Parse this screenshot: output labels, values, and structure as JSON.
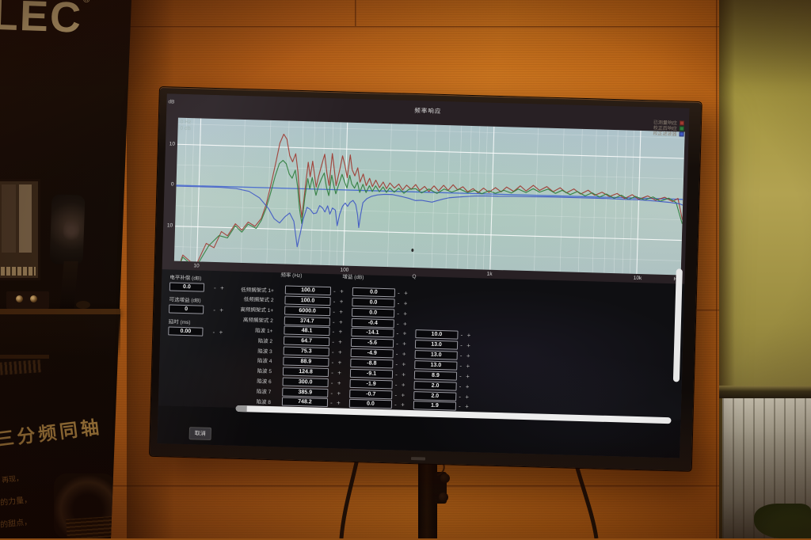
{
  "scene": {
    "banner": {
      "brand_partial": "LEC",
      "reg_mark": "®",
      "heading": "三分频同轴",
      "lines": [
        "再现，",
        "的力量，",
        "的甜点，"
      ]
    }
  },
  "screen": {
    "title": "频率响应",
    "cursor_readout": {
      "hz": "0 Hz",
      "db": "0 dB"
    },
    "y_axis": {
      "unit": "dB",
      "ticks": [
        "10",
        "0",
        "10"
      ]
    },
    "x_axis": {
      "ticks": [
        "10",
        "100",
        "1k",
        "10k"
      ],
      "unit": "Hz"
    },
    "stepper": {
      "minus": "-",
      "plus": "+"
    },
    "left_controls": [
      {
        "label": "电平补偿 (dB)",
        "value": "0.0"
      },
      {
        "label": "可选增益 (dB)",
        "value": "0"
      },
      {
        "label": "延时 (ms)",
        "value": "0.00"
      }
    ],
    "table": {
      "headers": {
        "freq": "频率 (Hz)",
        "gain": "增益 (dB)",
        "q": "Q"
      },
      "rows": [
        {
          "label": "低频搁架式 1+",
          "freq": "100.0",
          "gain": "0.0",
          "q": null
        },
        {
          "label": "低频搁架式 2",
          "freq": "100.0",
          "gain": "0.0",
          "q": null
        },
        {
          "label": "高频搁架式 1+",
          "freq": "6000.0",
          "gain": "0.0",
          "q": null
        },
        {
          "label": "高频搁架式 2",
          "freq": "374.7",
          "gain": "-0.4",
          "q": null
        },
        {
          "label": "陷波 1+",
          "freq": "48.1",
          "gain": "-14.1",
          "q": "10.0"
        },
        {
          "label": "陷波 2",
          "freq": "64.7",
          "gain": "-5.6",
          "q": "13.0"
        },
        {
          "label": "陷波 3",
          "freq": "75.3",
          "gain": "-4.9",
          "q": "13.0"
        },
        {
          "label": "陷波 4",
          "freq": "88.9",
          "gain": "-8.8",
          "q": "13.0"
        },
        {
          "label": "陷波 5",
          "freq": "124.8",
          "gain": "-9.1",
          "q": "8.9"
        },
        {
          "label": "陷波 6",
          "freq": "300.0",
          "gain": "-1.9",
          "q": "2.0"
        },
        {
          "label": "陷波 7",
          "freq": "385.9",
          "gain": "-0.7",
          "q": "2.0"
        },
        {
          "label": "陷波 8",
          "freq": "748.2",
          "gain": "0.0",
          "q": "1.9"
        }
      ]
    },
    "cancel_button": "取消"
  },
  "chart_data": {
    "type": "line",
    "title": "频率响应",
    "xlabel": "Hz",
    "ylabel": "dB",
    "x_scale": "log",
    "xlim": [
      7,
      20000
    ],
    "ylim": [
      -18.5,
      16.5
    ],
    "x_ticks": [
      10,
      100,
      1000,
      10000
    ],
    "y_ticks": [
      10,
      0,
      -10
    ],
    "grid": true,
    "legend_position": "top-right",
    "zero_line_color": "#4468cf",
    "legend": [
      {
        "label": "已测量响应",
        "color": "#9e3a31"
      },
      {
        "label": "校正后响应",
        "color": "#2e7d3c"
      },
      {
        "label": "校正滤波器",
        "color": "#3f58c4"
      }
    ],
    "series": [
      {
        "name": "measured-response",
        "color": "#9e3a31",
        "points": [
          [
            7.2,
            -22
          ],
          [
            8,
            -17
          ],
          [
            9,
            -18.5
          ],
          [
            10,
            -19
          ],
          [
            11.5,
            -14
          ],
          [
            13,
            -15
          ],
          [
            14.5,
            -11
          ],
          [
            16,
            -12
          ],
          [
            18,
            -9
          ],
          [
            20,
            -10.5
          ],
          [
            22,
            -8.5
          ],
          [
            24.5,
            -9.5
          ],
          [
            27,
            -7.5
          ],
          [
            29,
            -4
          ],
          [
            31,
            1
          ],
          [
            33,
            6
          ],
          [
            35,
            11
          ],
          [
            37,
            13.2
          ],
          [
            39,
            12
          ],
          [
            41,
            8
          ],
          [
            43,
            6.5
          ],
          [
            45,
            8.5
          ],
          [
            47,
            4
          ],
          [
            49,
            -3
          ],
          [
            51,
            -7
          ],
          [
            53,
            0
          ],
          [
            55,
            6.5
          ],
          [
            57,
            3
          ],
          [
            59,
            6.8
          ],
          [
            61,
            3.5
          ],
          [
            63,
            0.5
          ],
          [
            65,
            3
          ],
          [
            68,
            6
          ],
          [
            71,
            8.6
          ],
          [
            74,
            4
          ],
          [
            77,
            1
          ],
          [
            80,
            8.8
          ],
          [
            83,
            5
          ],
          [
            86,
            1
          ],
          [
            90,
            4.5
          ],
          [
            94,
            8.3
          ],
          [
            98,
            6
          ],
          [
            102,
            3
          ],
          [
            106,
            8.6
          ],
          [
            110,
            5
          ],
          [
            115,
            3.5
          ],
          [
            120,
            5.5
          ],
          [
            125,
            2
          ],
          [
            131,
            4
          ],
          [
            138,
            1.2
          ],
          [
            145,
            3
          ],
          [
            152,
            1
          ],
          [
            160,
            2.6
          ],
          [
            170,
            0.8
          ],
          [
            180,
            2.2
          ],
          [
            190,
            0.6
          ],
          [
            200,
            2
          ],
          [
            215,
            0.8
          ],
          [
            230,
            1.8
          ],
          [
            245,
            0.4
          ],
          [
            260,
            1.6
          ],
          [
            280,
            0.6
          ],
          [
            300,
            1.8
          ],
          [
            320,
            0.4
          ],
          [
            345,
            1.4
          ],
          [
            370,
            0.2
          ],
          [
            400,
            1.6
          ],
          [
            430,
            0.4
          ],
          [
            465,
            1.8
          ],
          [
            500,
            0.6
          ],
          [
            540,
            2
          ],
          [
            580,
            0.8
          ],
          [
            630,
            1.6
          ],
          [
            680,
            0.4
          ],
          [
            740,
            1.2
          ],
          [
            800,
            0.2
          ],
          [
            870,
            1.4
          ],
          [
            950,
            0.4
          ],
          [
            1050,
            1.6
          ],
          [
            1150,
            0.6
          ],
          [
            1250,
            1.8
          ],
          [
            1400,
            0.8
          ],
          [
            1550,
            2.2
          ],
          [
            1700,
            1
          ],
          [
            1900,
            2.4
          ],
          [
            2100,
            1.2
          ],
          [
            2350,
            2.2
          ],
          [
            2600,
            1
          ],
          [
            2900,
            2
          ],
          [
            3200,
            0.8
          ],
          [
            3600,
            1.8
          ],
          [
            4000,
            0.6
          ],
          [
            4500,
            1.6
          ],
          [
            5000,
            0.4
          ],
          [
            5600,
            1.2
          ],
          [
            6300,
            0.2
          ],
          [
            7100,
            1
          ],
          [
            8000,
            -0.2
          ],
          [
            9000,
            0.8
          ],
          [
            10000,
            -0.3
          ],
          [
            11500,
            0.6
          ],
          [
            13000,
            -0.4
          ],
          [
            15000,
            0.4
          ],
          [
            17000,
            -0.6
          ],
          [
            18500,
            0.2
          ],
          [
            20000,
            -5
          ]
        ]
      },
      {
        "name": "corrected-response",
        "color": "#2e7d3c",
        "points": [
          [
            7.2,
            -22.5
          ],
          [
            8,
            -17.5
          ],
          [
            9,
            -19
          ],
          [
            10,
            -19.5
          ],
          [
            12,
            -14.5
          ],
          [
            14,
            -12
          ],
          [
            16,
            -12.5
          ],
          [
            18,
            -9.5
          ],
          [
            20,
            -11
          ],
          [
            22,
            -9
          ],
          [
            25,
            -10
          ],
          [
            27,
            -8
          ],
          [
            29,
            -5
          ],
          [
            31,
            -1
          ],
          [
            33,
            3
          ],
          [
            35,
            6
          ],
          [
            37,
            6.8
          ],
          [
            39,
            6
          ],
          [
            41,
            3.5
          ],
          [
            43,
            2.5
          ],
          [
            45,
            4.5
          ],
          [
            47,
            0.5
          ],
          [
            49,
            -5
          ],
          [
            51,
            -8.5
          ],
          [
            53,
            -2
          ],
          [
            55,
            2.5
          ],
          [
            57,
            0
          ],
          [
            59,
            2.8
          ],
          [
            61,
            0.5
          ],
          [
            63,
            -1.5
          ],
          [
            65,
            0.5
          ],
          [
            68,
            2.5
          ],
          [
            71,
            4
          ],
          [
            74,
            0.5
          ],
          [
            77,
            -1.5
          ],
          [
            80,
            3.5
          ],
          [
            83,
            1
          ],
          [
            86,
            -1
          ],
          [
            90,
            1.5
          ],
          [
            94,
            3.8
          ],
          [
            98,
            2
          ],
          [
            102,
            0.5
          ],
          [
            106,
            3.6
          ],
          [
            110,
            1.5
          ],
          [
            115,
            0.5
          ],
          [
            120,
            2
          ],
          [
            125,
            -0.5
          ],
          [
            131,
            1.5
          ],
          [
            138,
            -0.5
          ],
          [
            145,
            1.2
          ],
          [
            152,
            -0.2
          ],
          [
            160,
            1.2
          ],
          [
            170,
            -0.2
          ],
          [
            180,
            1
          ],
          [
            190,
            -0.3
          ],
          [
            200,
            0.8
          ],
          [
            215,
            -0.2
          ],
          [
            230,
            0.8
          ],
          [
            250,
            -0.4
          ],
          [
            270,
            0.6
          ],
          [
            300,
            0.8
          ],
          [
            330,
            -0.2
          ],
          [
            370,
            0.8
          ],
          [
            420,
            -0.2
          ],
          [
            470,
            0.9
          ],
          [
            530,
            0.2
          ],
          [
            600,
            1
          ],
          [
            680,
            0.2
          ],
          [
            760,
            0.8
          ],
          [
            850,
            0
          ],
          [
            950,
            0.8
          ],
          [
            1050,
            0.2
          ],
          [
            1200,
            1
          ],
          [
            1350,
            0.4
          ],
          [
            1500,
            1.4
          ],
          [
            1700,
            0.6
          ],
          [
            1900,
            1.6
          ],
          [
            2100,
            0.8
          ],
          [
            2400,
            1.6
          ],
          [
            2700,
            0.6
          ],
          [
            3000,
            1.4
          ],
          [
            3400,
            0.4
          ],
          [
            3800,
            1.2
          ],
          [
            4300,
            0.2
          ],
          [
            4800,
            1
          ],
          [
            5400,
            0
          ],
          [
            6000,
            0.8
          ],
          [
            6800,
            -0.2
          ],
          [
            7600,
            0.6
          ],
          [
            8500,
            -0.4
          ],
          [
            9500,
            0.4
          ],
          [
            11000,
            -0.4
          ],
          [
            12500,
            0.4
          ],
          [
            14000,
            -0.6
          ],
          [
            16000,
            0.2
          ],
          [
            18000,
            -0.8
          ],
          [
            20000,
            -6
          ]
        ]
      },
      {
        "name": "correction-filter",
        "color": "#3f58c4",
        "points": [
          [
            7,
            -0.2
          ],
          [
            10,
            -0.2
          ],
          [
            14,
            -0.2
          ],
          [
            18,
            -0.4
          ],
          [
            22,
            -1
          ],
          [
            26,
            -2.5
          ],
          [
            30,
            -5
          ],
          [
            33,
            -7.5
          ],
          [
            36,
            -8.5
          ],
          [
            39,
            -7
          ],
          [
            42,
            -6
          ],
          [
            45,
            -8
          ],
          [
            48,
            -14.2
          ],
          [
            50,
            -11
          ],
          [
            52,
            -7.5
          ],
          [
            55,
            -4.5
          ],
          [
            58,
            -5
          ],
          [
            61,
            -6
          ],
          [
            64,
            -5.8
          ],
          [
            67,
            -4
          ],
          [
            70,
            -4.5
          ],
          [
            73,
            -5.5
          ],
          [
            76,
            -4
          ],
          [
            79,
            -6
          ],
          [
            82,
            -4.5
          ],
          [
            86,
            -5
          ],
          [
            89,
            -8.8
          ],
          [
            92,
            -6
          ],
          [
            96,
            -4
          ],
          [
            100,
            -3.2
          ],
          [
            104,
            -4
          ],
          [
            108,
            -3
          ],
          [
            113,
            -2.5
          ],
          [
            118,
            -3.5
          ],
          [
            122,
            -6
          ],
          [
            125,
            -9.1
          ],
          [
            128,
            -6
          ],
          [
            132,
            -3
          ],
          [
            140,
            -2
          ],
          [
            150,
            -1.4
          ],
          [
            165,
            -1
          ],
          [
            185,
            -0.8
          ],
          [
            210,
            -0.8
          ],
          [
            240,
            -1.2
          ],
          [
            270,
            -1.6
          ],
          [
            300,
            -2.1
          ],
          [
            330,
            -2
          ],
          [
            360,
            -2.2
          ],
          [
            390,
            -2.4
          ],
          [
            420,
            -2
          ],
          [
            460,
            -1.6
          ],
          [
            510,
            -1.2
          ],
          [
            570,
            -1
          ],
          [
            650,
            -0.8
          ],
          [
            760,
            -0.6
          ],
          [
            900,
            -0.5
          ],
          [
            1100,
            -0.5
          ],
          [
            1400,
            -0.4
          ],
          [
            1800,
            -0.4
          ],
          [
            2400,
            -0.3
          ],
          [
            3200,
            -0.3
          ],
          [
            4500,
            -0.3
          ],
          [
            6000,
            -0.3
          ],
          [
            8000,
            -0.4
          ],
          [
            10000,
            -0.4
          ],
          [
            13000,
            -0.6
          ],
          [
            16000,
            -0.8
          ],
          [
            19000,
            -1.1
          ],
          [
            20000,
            -1.4
          ]
        ]
      }
    ]
  }
}
